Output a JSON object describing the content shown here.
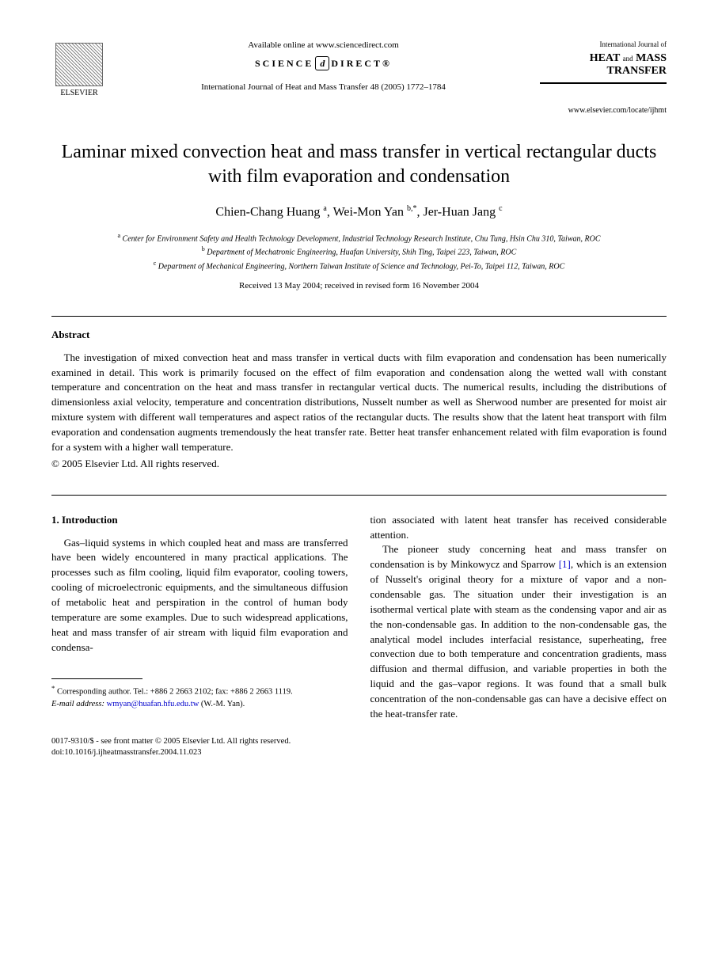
{
  "header": {
    "elsevier_label": "ELSEVIER",
    "available_online": "Available online at www.sciencedirect.com",
    "science_left": "SCIENCE",
    "science_right": "DIRECT®",
    "journal_ref": "International Journal of Heat and Mass Transfer 48 (2005) 1772–1784",
    "journal_label": "International Journal of",
    "journal_name_l1": "HEAT",
    "journal_name_and": "and",
    "journal_name_l2": "MASS",
    "journal_name_l3": "TRANSFER",
    "journal_url": "www.elsevier.com/locate/ijhmt"
  },
  "title": "Laminar mixed convection heat and mass transfer in vertical rectangular ducts with film evaporation and condensation",
  "authors": {
    "a1_name": "Chien-Chang Huang",
    "a1_sup": "a",
    "a2_name": "Wei-Mon Yan",
    "a2_sup": "b,*",
    "a3_name": "Jer-Huan Jang",
    "a3_sup": "c"
  },
  "affiliations": {
    "a_sup": "a",
    "a_text": "Center for Environment Safety and Health Technology Development, Industrial Technology Research Institute, Chu Tung, Hsin Chu 310, Taiwan, ROC",
    "b_sup": "b",
    "b_text": "Department of Mechatronic Engineering, Huafan University, Shih Ting, Taipei 223, Taiwan, ROC",
    "c_sup": "c",
    "c_text": "Department of Mechanical Engineering, Northern Taiwan Institute of Science and Technology, Pei-To, Taipei 112, Taiwan, ROC"
  },
  "dates": "Received 13 May 2004; received in revised form 16 November 2004",
  "abstract": {
    "heading": "Abstract",
    "text": "The investigation of mixed convection heat and mass transfer in vertical ducts with film evaporation and condensation has been numerically examined in detail. This work is primarily focused on the effect of film evaporation and condensation along the wetted wall with constant temperature and concentration on the heat and mass transfer in rectangular vertical ducts. The numerical results, including the distributions of dimensionless axial velocity, temperature and concentration distributions, Nusselt number as well as Sherwood number are presented for moist air mixture system with different wall temperatures and aspect ratios of the rectangular ducts. The results show that the latent heat transport with film evaporation and condensation augments tremendously the heat transfer rate. Better heat transfer enhancement related with film evaporation is found for a system with a higher wall temperature.",
    "copyright": "© 2005 Elsevier Ltd. All rights reserved."
  },
  "intro": {
    "heading": "1. Introduction",
    "para1": "Gas–liquid systems in which coupled heat and mass are transferred have been widely encountered in many practical applications. The processes such as film cooling, liquid film evaporator, cooling towers, cooling of microelectronic equipments, and the simultaneous diffusion of metabolic heat and perspiration in the control of human body temperature are some examples. Due to such widespread applications, heat and mass transfer of air stream with liquid film evaporation and condensa-",
    "para2a": "tion associated with latent heat transfer has received considerable attention.",
    "para2b_pre": "The pioneer study concerning heat and mass transfer on condensation is by Minkowycz and Sparrow ",
    "ref1": "[1]",
    "para2b_post": ", which is an extension of Nusselt's original theory for a mixture of vapor and a non-condensable gas. The situation under their investigation is an isothermal vertical plate with steam as the condensing vapor and air as the non-condensable gas. In addition to the non-condensable gas, the analytical model includes interfacial resistance, superheating, free convection due to both temperature and concentration gradients, mass diffusion and thermal diffusion, and variable properties in both the liquid and the gas–vapor regions. It was found that a small bulk concentration of the non-condensable gas can have a decisive effect on the heat-transfer rate."
  },
  "footnote": {
    "corr_label": "Corresponding author. Tel.: +886 2 2663 2102; fax: +886 2 2663 1119.",
    "email_label": "E-mail address:",
    "email": "wmyan@huafan.hfu.edu.tw",
    "email_who": "(W.-M. Yan)."
  },
  "footer": {
    "line1": "0017-9310/$ - see front matter © 2005 Elsevier Ltd. All rights reserved.",
    "line2": "doi:10.1016/j.ijheatmasstransfer.2004.11.023"
  }
}
